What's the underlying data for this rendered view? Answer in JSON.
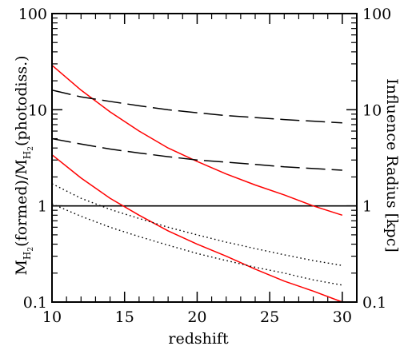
{
  "chart_data": {
    "type": "line",
    "xlabel": "redshift",
    "ylabel_left_parts": {
      "M1": "M",
      "H2_a": "H",
      "sub2_a": "2",
      "formed": "(formed)/M",
      "H2_b": "H",
      "sub2_b": "2",
      "photodiss": "(photodiss.)"
    },
    "ylabel_right": "Influence Radius [kpc]",
    "xlim": [
      10,
      31
    ],
    "ylim": [
      0.1,
      100
    ],
    "y_scale": "log",
    "x_ticks": [
      10,
      15,
      20,
      25,
      30
    ],
    "x_tick_labels": [
      "10",
      "15",
      "20",
      "25",
      "30"
    ],
    "y_ticks": [
      0.1,
      1,
      10,
      100
    ],
    "y_tick_labels_left": [
      "0.1",
      "1",
      "10",
      "100"
    ],
    "y_tick_labels_right": [
      "0.1",
      "1",
      "10",
      "100"
    ],
    "reference_line": {
      "y": 1,
      "color": "#000000",
      "style": "solid"
    },
    "series": [
      {
        "axis": "left",
        "color": "#ff0000",
        "style": "solid",
        "x": [
          10,
          12,
          14,
          16,
          18,
          20,
          22,
          24,
          26,
          28,
          30
        ],
        "y": [
          29,
          16,
          9.5,
          6.0,
          4.0,
          2.9,
          2.15,
          1.65,
          1.3,
          1.0,
          0.8
        ]
      },
      {
        "axis": "left",
        "color": "#ff0000",
        "style": "solid",
        "x": [
          10,
          12,
          14,
          16,
          18,
          20,
          22,
          24,
          26,
          28,
          30
        ],
        "y": [
          3.4,
          1.95,
          1.2,
          0.8,
          0.55,
          0.4,
          0.3,
          0.22,
          0.165,
          0.13,
          0.1
        ]
      },
      {
        "axis": "right",
        "color": "#000000",
        "style": "long-dash",
        "x": [
          10,
          12,
          14,
          16,
          18,
          20,
          22,
          24,
          26,
          28,
          30
        ],
        "y": [
          16,
          13.6,
          12.2,
          11.0,
          10.0,
          9.3,
          8.7,
          8.3,
          7.9,
          7.6,
          7.3
        ]
      },
      {
        "axis": "right",
        "color": "#000000",
        "style": "long-dash",
        "x": [
          10,
          12,
          14,
          16,
          18,
          20,
          22,
          24,
          26,
          28,
          30
        ],
        "y": [
          5.0,
          4.4,
          3.9,
          3.55,
          3.25,
          3.0,
          2.85,
          2.7,
          2.55,
          2.45,
          2.35
        ]
      },
      {
        "axis": "right",
        "color": "#000000",
        "style": "dotted",
        "x": [
          10,
          12,
          14,
          16,
          18,
          20,
          22,
          24,
          26,
          28,
          30
        ],
        "y": [
          1.7,
          1.2,
          0.92,
          0.74,
          0.6,
          0.5,
          0.42,
          0.36,
          0.31,
          0.27,
          0.24
        ]
      },
      {
        "axis": "right",
        "color": "#000000",
        "style": "dotted",
        "x": [
          10,
          12,
          14,
          16,
          18,
          20,
          22,
          24,
          26,
          28,
          30
        ],
        "y": [
          1.05,
          0.78,
          0.6,
          0.48,
          0.39,
          0.32,
          0.27,
          0.23,
          0.2,
          0.17,
          0.15
        ]
      }
    ]
  }
}
